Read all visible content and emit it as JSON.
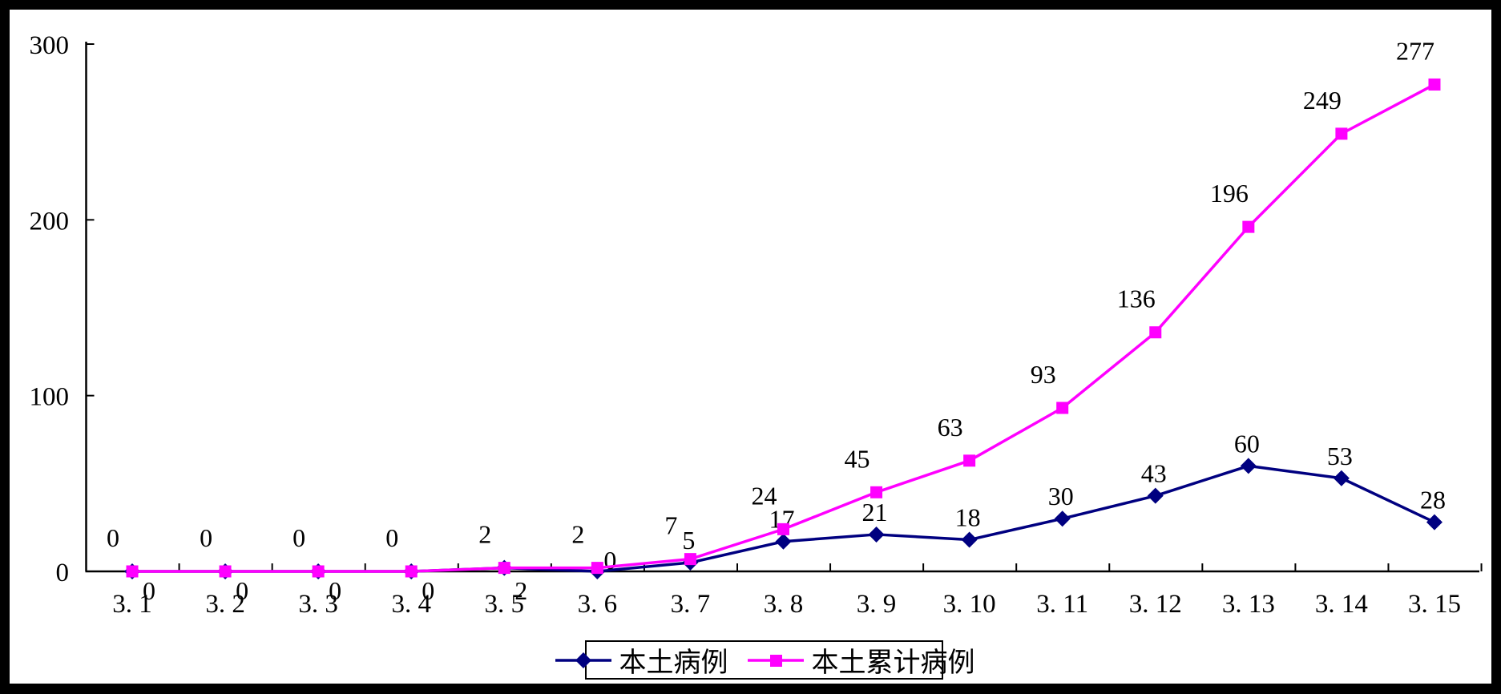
{
  "frame": {
    "border_color": "#000000",
    "canvas_background": "#ffffff"
  },
  "chart_data": {
    "type": "line",
    "title": "",
    "xlabel": "",
    "ylabel": "",
    "categories": [
      "3. 1",
      "3. 2",
      "3. 3",
      "3. 4",
      "3. 5",
      "3. 6",
      "3. 7",
      "3. 8",
      "3. 9",
      "3. 10",
      "3. 11",
      "3. 12",
      "3. 13",
      "3. 14",
      "3. 15"
    ],
    "series": [
      {
        "name": "本土病例",
        "marker": "diamond",
        "color": "#000080",
        "values": [
          0,
          0,
          0,
          0,
          2,
          0,
          5,
          17,
          21,
          18,
          30,
          43,
          60,
          53,
          28
        ]
      },
      {
        "name": "本土累计病例",
        "marker": "square",
        "color": "#FF00FF",
        "values": [
          0,
          0,
          0,
          0,
          2,
          2,
          7,
          24,
          45,
          63,
          93,
          136,
          196,
          249,
          277
        ]
      }
    ],
    "ylim": [
      0,
      300
    ],
    "yticks": [
      0,
      100,
      200,
      300
    ],
    "grid": false,
    "data_labels": true,
    "legend_position": "bottom",
    "axis_color": "#000000",
    "text_color": "#000000"
  }
}
